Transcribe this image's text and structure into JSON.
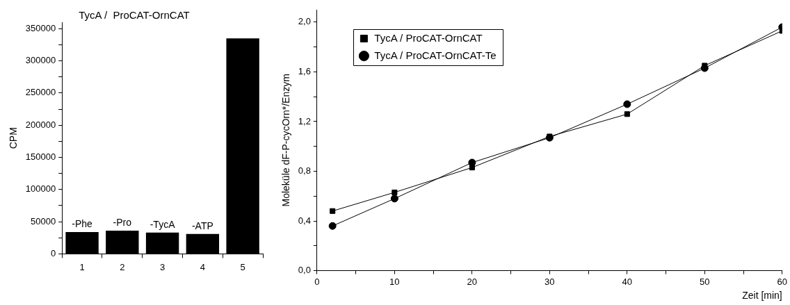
{
  "chart_data": [
    {
      "type": "bar",
      "title": "TycA /  ProCAT-OrnCAT",
      "ylabel": "CPM",
      "categories": [
        "1",
        "2",
        "3",
        "4",
        "5"
      ],
      "values": [
        34000,
        36000,
        33000,
        31000,
        335000
      ],
      "color": "#000000",
      "ylim": [
        0,
        360000
      ],
      "yticks": [
        0,
        {
          "value": 25000,
          "label": null
        },
        50000,
        {
          "value": 75000,
          "label": null
        },
        100000,
        {
          "value": 125000,
          "label": null
        },
        150000,
        {
          "value": 175000,
          "label": null
        },
        200000,
        {
          "value": 225000,
          "label": null
        },
        250000,
        {
          "value": 275000,
          "label": null
        },
        300000,
        {
          "value": 325000,
          "label": null
        },
        350000
      ],
      "annotations": [
        {
          "text": "-Phe",
          "x": "1",
          "y": 34000
        },
        {
          "text": "-Pro",
          "x": "2",
          "y": 36000
        },
        {
          "text": "-TycA",
          "x": "3",
          "y": 33000
        },
        {
          "text": "-ATP",
          "x": "4",
          "y": 31000
        }
      ],
      "grid": false,
      "legend": false
    },
    {
      "type": "line",
      "xlabel": "Zeit [min]",
      "ylabel": "Moleküle dF-P-cycOrn*/Enzym",
      "x": [
        2,
        10,
        20,
        30,
        40,
        50,
        60
      ],
      "series": [
        {
          "name": "TycA / ProCAT-OrnCAT",
          "color": "#000000",
          "marker": "square",
          "values": [
            0.48,
            0.63,
            0.83,
            1.08,
            1.26,
            1.65,
            1.93
          ]
        },
        {
          "name": "TycA / ProCAT-OrnCAT-Te",
          "color": "#000000",
          "marker": "circle",
          "values": [
            0.36,
            0.58,
            0.87,
            1.07,
            1.34,
            1.63,
            1.96
          ]
        }
      ],
      "xlim": [
        0,
        60
      ],
      "xticks": [
        0,
        {
          "value": 5,
          "label": null
        },
        10,
        {
          "value": 15,
          "label": null
        },
        20,
        {
          "value": 25,
          "label": null
        },
        30,
        {
          "value": 35,
          "label": null
        },
        40,
        {
          "value": 45,
          "label": null
        },
        50,
        {
          "value": 55,
          "label": null
        },
        60
      ],
      "ylim": [
        0,
        2.1
      ],
      "yticks": [
        {
          "value": 0,
          "label": "0,0"
        },
        {
          "value": 0.2,
          "label": null
        },
        {
          "value": 0.4,
          "label": "0,4"
        },
        {
          "value": 0.6,
          "label": null
        },
        {
          "value": 0.8,
          "label": "0,8"
        },
        {
          "value": 1.0,
          "label": null
        },
        {
          "value": 1.2,
          "label": "1,2"
        },
        {
          "value": 1.4,
          "label": null
        },
        {
          "value": 1.6,
          "label": "1,6"
        },
        {
          "value": 1.8,
          "label": null
        },
        {
          "value": 2.0,
          "label": "2,0"
        }
      ],
      "grid": false,
      "legend": "top left",
      "line_style": "solid"
    }
  ]
}
